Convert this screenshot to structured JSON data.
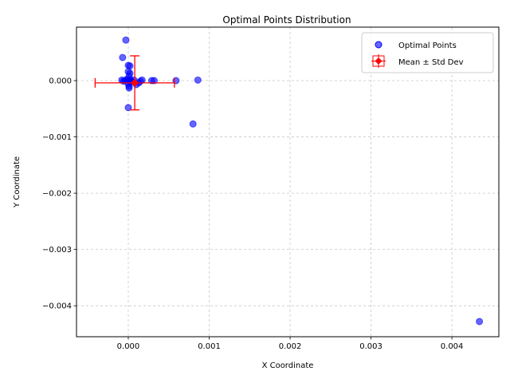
{
  "chart_data": {
    "type": "scatter",
    "title": "Optimal Points Distribution",
    "xlabel": "X Coordinate",
    "ylabel": "Y Coordinate",
    "xlim": [
      -0.00064,
      0.00458
    ],
    "ylim": [
      -0.00455,
      0.00095
    ],
    "xticks": [
      0.0,
      0.001,
      0.002,
      0.003,
      0.004
    ],
    "xtick_labels": [
      "0.000",
      "0.001",
      "0.002",
      "0.003",
      "0.004"
    ],
    "yticks": [
      0.0,
      -0.001,
      -0.002,
      -0.003,
      -0.004
    ],
    "ytick_labels": [
      "0.000",
      "−0.001",
      "−0.002",
      "−0.003",
      "−0.004"
    ],
    "grid": true,
    "legend_position": "top-right",
    "series": [
      {
        "name": "Optimal Points",
        "color": "#0000ff",
        "points": [
          {
            "x": -3e-05,
            "y": 0.00072
          },
          {
            "x": -7e-05,
            "y": 0.00041
          },
          {
            "x": 0.0,
            "y": 0.00027
          },
          {
            "x": 2e-05,
            "y": 0.00026
          },
          {
            "x": 0.0,
            "y": 0.00016
          },
          {
            "x": 2e-05,
            "y": 0.00013
          },
          {
            "x": 1e-05,
            "y": 8e-05
          },
          {
            "x": -8e-05,
            "y": 1e-05
          },
          {
            "x": -6e-05,
            "y": -1e-05
          },
          {
            "x": -4e-05,
            "y": 0.0
          },
          {
            "x": -2e-05,
            "y": 2e-05
          },
          {
            "x": 0.0,
            "y": 1e-05
          },
          {
            "x": 2e-05,
            "y": -1e-05
          },
          {
            "x": 3e-05,
            "y": 1e-05
          },
          {
            "x": 0.0,
            "y": -6e-05
          },
          {
            "x": 1e-05,
            "y": -0.0001
          },
          {
            "x": 1e-05,
            "y": -0.00013
          },
          {
            "x": 4e-05,
            "y": -2e-05
          },
          {
            "x": 7e-05,
            "y": 1e-05
          },
          {
            "x": 0.0001,
            "y": -7e-05
          },
          {
            "x": 0.00013,
            "y": -4e-05
          },
          {
            "x": 0.00015,
            "y": -1e-05
          },
          {
            "x": 0.00017,
            "y": 1e-05
          },
          {
            "x": 0.00029,
            "y": 0.0
          },
          {
            "x": 0.00032,
            "y": 0.0
          },
          {
            "x": 0.00059,
            "y": 0.0
          },
          {
            "x": 0.00086,
            "y": 1e-05
          },
          {
            "x": 0.0,
            "y": -0.00048
          },
          {
            "x": 0.0008,
            "y": -0.00077
          },
          {
            "x": 0.00434,
            "y": -0.00428
          }
        ]
      },
      {
        "name": "Mean ± Std Dev",
        "color": "#ff0000",
        "mean": {
          "x": 8e-05,
          "y": -4e-05
        },
        "std": {
          "x": 0.00049,
          "y": 0.00048
        }
      }
    ]
  }
}
